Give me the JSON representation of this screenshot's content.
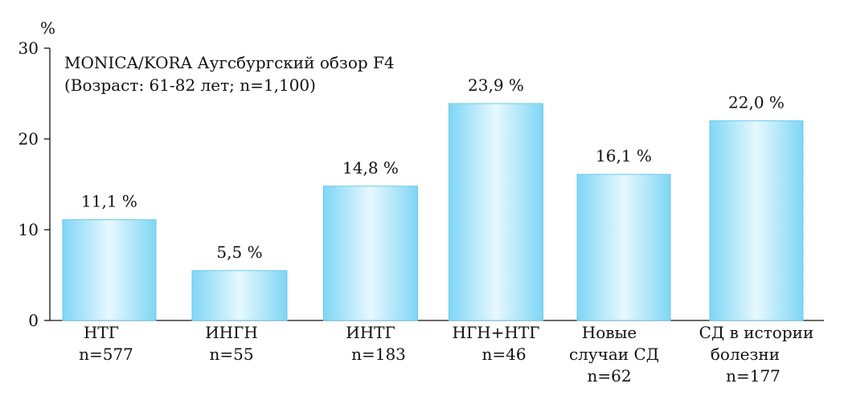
{
  "chart_data": {
    "type": "bar",
    "annotation_lines": [
      "MONICA/KORA Аугсбургский обзор F4",
      "(Возраст: 61-82 лет; n=1,100)"
    ],
    "y_unit": "%",
    "ylim": [
      0,
      30
    ],
    "yticks": [
      "0",
      "10",
      "20",
      "30"
    ],
    "grid": false,
    "categories": [
      {
        "lines": [
          "НТГ",
          "n=577"
        ]
      },
      {
        "lines": [
          "ИНГН",
          "n=55"
        ]
      },
      {
        "lines": [
          "ИНТГ",
          "n=183"
        ]
      },
      {
        "lines": [
          "НГН+НТГ",
          "n=46"
        ]
      },
      {
        "lines": [
          "Новые",
          "случаи СД",
          "n=62"
        ]
      },
      {
        "lines": [
          "СД в истории",
          "болезни",
          "n=177"
        ]
      }
    ],
    "values": [
      11.1,
      5.5,
      14.8,
      23.9,
      16.1,
      22.0
    ],
    "value_labels": [
      "11,1 %",
      "5,5 %",
      "14,8 %",
      "23,9 %",
      "16,1 %",
      "22,0 %"
    ],
    "bar_color": "#8fdcf6",
    "bar_edge_color": "#6cc8ea"
  }
}
